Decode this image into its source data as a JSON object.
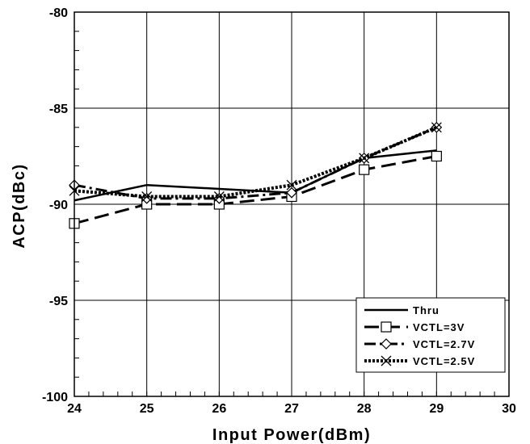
{
  "chart_data": {
    "type": "line",
    "title": "",
    "xlabel": "Input Power(dBm)",
    "ylabel": "ACP(dBc)",
    "xlim": [
      24,
      30
    ],
    "ylim": [
      -100,
      -80
    ],
    "xticks": [
      24,
      25,
      26,
      27,
      28,
      29,
      30
    ],
    "yticks": [
      -80,
      -85,
      -90,
      -95,
      -100
    ],
    "xtick_labels": [
      "24",
      "25",
      "26",
      "27",
      "28",
      "29",
      "30"
    ],
    "ytick_labels": [
      "-80",
      "-85",
      "-90",
      "-95",
      "-100"
    ],
    "grid": true,
    "legend_position": "bottom-right",
    "series": [
      {
        "name": "Thru",
        "style": "solid",
        "marker": "none",
        "color": "#000000",
        "x": [
          24,
          25,
          26,
          27,
          28,
          29
        ],
        "y": [
          -89.8,
          -89.0,
          -89.2,
          -89.4,
          -87.6,
          -87.2
        ]
      },
      {
        "name": "VCTL=3V",
        "style": "long-dash",
        "marker": "square",
        "color": "#000000",
        "x": [
          24,
          25,
          26,
          27,
          28,
          29
        ],
        "y": [
          -91.0,
          -90.0,
          -90.0,
          -89.6,
          -88.2,
          -87.5
        ]
      },
      {
        "name": "VCTL=2.7V",
        "style": "dash-dot",
        "marker": "diamond",
        "color": "#000000",
        "x": [
          24,
          25,
          26,
          27,
          28,
          29
        ],
        "y": [
          -89.0,
          -89.7,
          -89.7,
          -89.4,
          -87.6,
          -86.0
        ]
      },
      {
        "name": "VCTL=2.5V",
        "style": "dotted",
        "marker": "x",
        "color": "#000000",
        "x": [
          24,
          25,
          26,
          27,
          28,
          29
        ],
        "y": [
          -89.3,
          -89.6,
          -89.6,
          -89.0,
          -87.6,
          -86.0
        ]
      }
    ]
  }
}
